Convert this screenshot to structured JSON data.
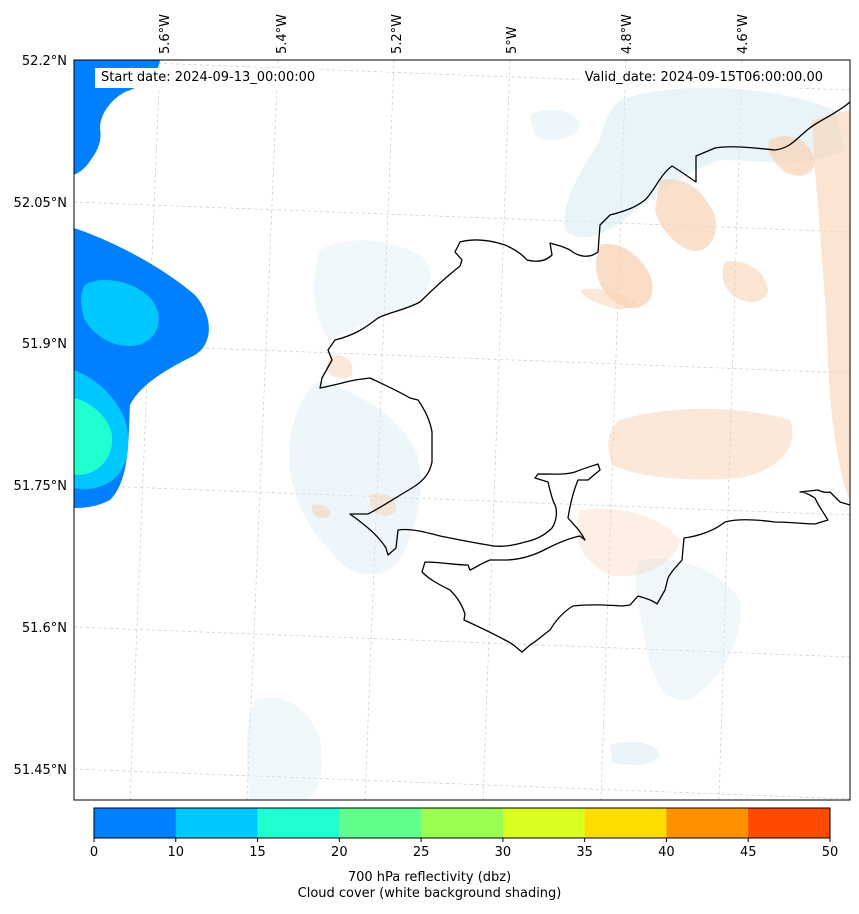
{
  "header": {
    "start_date": "Start date: 2024-09-13_00:00:00",
    "valid_date": "Valid_date: 2024-09-15T06:00:00.00"
  },
  "axes": {
    "lon_ticks": [
      "5.6°W",
      "5.4°W",
      "5.2°W",
      "5°W",
      "4.8°W",
      "4.6°W"
    ],
    "lat_ticks": [
      "52.2°N",
      "52.05°N",
      "51.9°N",
      "51.75°N",
      "51.6°N",
      "51.45°N"
    ]
  },
  "colorbar": {
    "ticks": [
      "0",
      "10",
      "15",
      "20",
      "25",
      "30",
      "35",
      "40",
      "45",
      "50"
    ],
    "colors": [
      "#0080ff",
      "#00c8ff",
      "#20ffd0",
      "#60ff8c",
      "#98ff50",
      "#d8ff20",
      "#ffdc00",
      "#ff9000",
      "#ff4a00"
    ],
    "title_line1": "700 hPa reflectivity (dbz)",
    "title_line2": "Cloud cover (white background shading)"
  },
  "palette": {
    "cloud_blue": "#d8ecf3",
    "cloud_orange": "#f8d2b4",
    "coast": "#000000",
    "grid": "#c8c8c8"
  }
}
